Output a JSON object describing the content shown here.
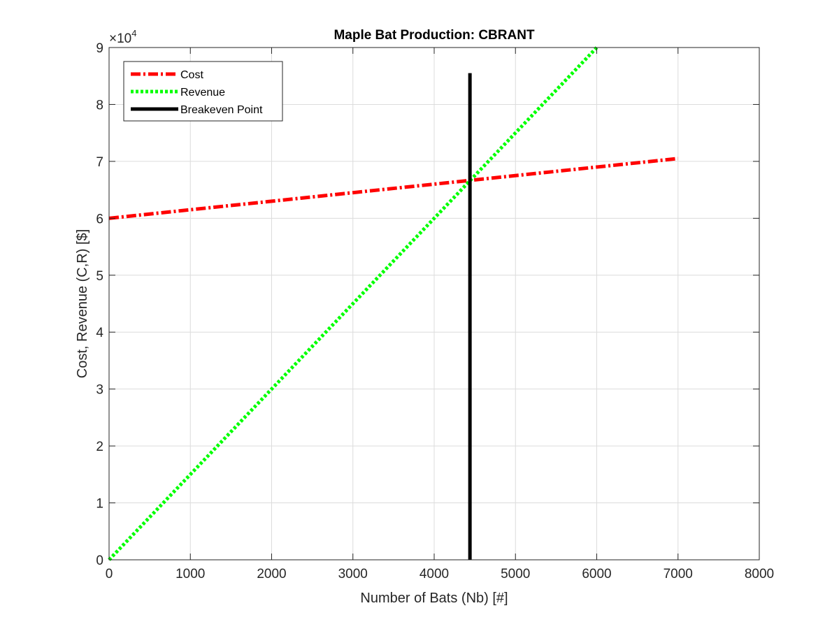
{
  "chart_data": {
    "type": "line",
    "title": "Maple Bat Production: CBRANT",
    "xlabel": "Number of Bats (Nb) [#]",
    "ylabel": "Cost, Revenue (C,R) [$]",
    "xlim": [
      0,
      8000
    ],
    "ylim": [
      0,
      90000
    ],
    "xticks": [
      0,
      1000,
      2000,
      3000,
      4000,
      5000,
      6000,
      7000,
      8000
    ],
    "yticks": [
      0,
      10000,
      20000,
      30000,
      40000,
      50000,
      60000,
      70000,
      80000,
      90000
    ],
    "ytick_labels": [
      "0",
      "1",
      "2",
      "3",
      "4",
      "5",
      "6",
      "7",
      "8",
      "9"
    ],
    "y_multiplier_base": "×10",
    "y_multiplier_exp": "4",
    "grid": true,
    "legend_position": "top-left",
    "series": [
      {
        "name": "Cost",
        "style": "dash-dot",
        "color": "#ff0000",
        "x": [
          0,
          7000
        ],
        "y": [
          60000,
          70500
        ]
      },
      {
        "name": "Revenue",
        "style": "dotted",
        "color": "#00ff00",
        "x": [
          0,
          6000
        ],
        "y": [
          0,
          90000
        ]
      },
      {
        "name": "Breakeven Point",
        "style": "solid",
        "color": "#000000",
        "x": [
          4440,
          4440
        ],
        "y": [
          0,
          85500
        ]
      }
    ]
  }
}
